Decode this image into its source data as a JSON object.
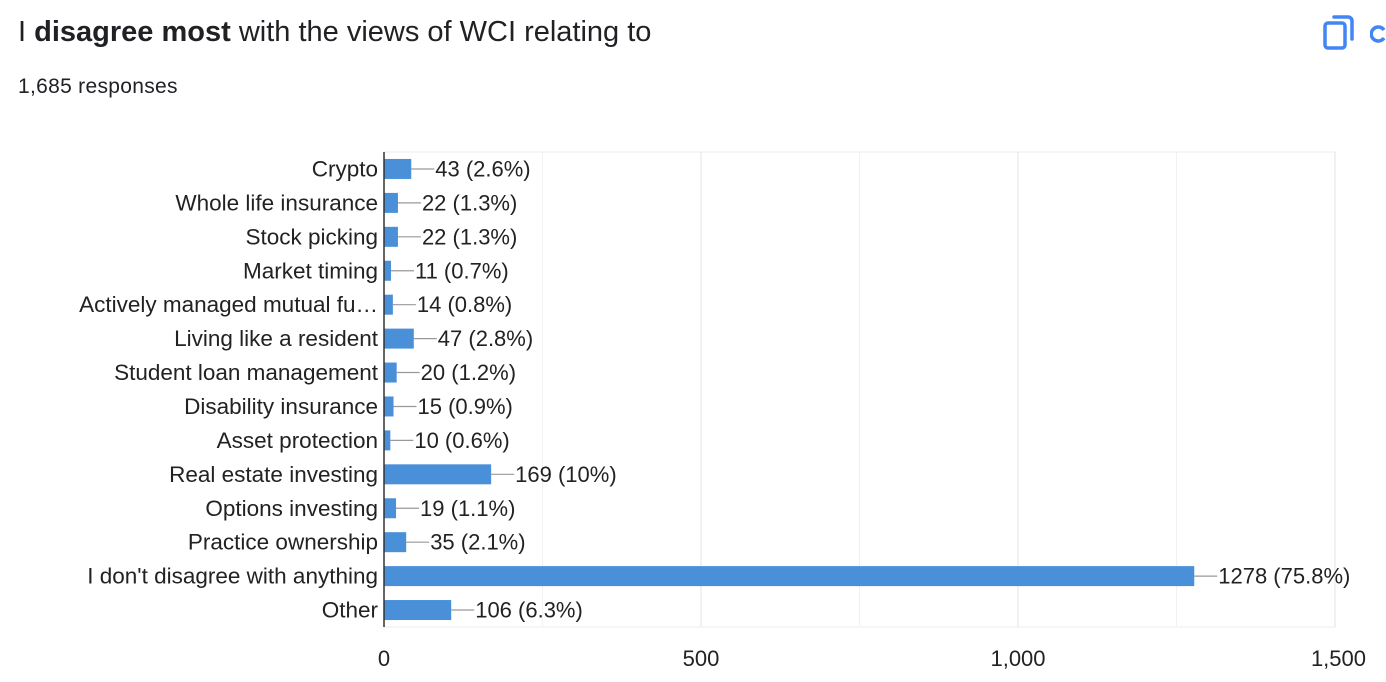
{
  "header": {
    "title_prefix": "I ",
    "title_bold": "disagree most",
    "title_suffix": " with the views of WCI relating to",
    "responses": "1,685 responses",
    "copy_icon": "copy-icon",
    "more_icon": "more-icon",
    "accent_color": "#4285f4"
  },
  "chart_data": {
    "type": "bar",
    "orientation": "horizontal",
    "bar_color": "#4a90d9",
    "categories": [
      "Crypto",
      "Whole life insurance",
      "Stock picking",
      "Market timing",
      "Actively managed mutual fu…",
      "Living like a resident",
      "Student loan management",
      "Disability insurance",
      "Asset protection",
      "Real estate investing",
      "Options investing",
      "Practice ownership",
      "I don't disagree with anything",
      "Other"
    ],
    "values": [
      43,
      22,
      22,
      11,
      14,
      47,
      20,
      15,
      10,
      169,
      19,
      35,
      1278,
      106
    ],
    "value_labels": [
      "43 (2.6%)",
      "22 (1.3%)",
      "22 (1.3%)",
      "11 (0.7%)",
      "14 (0.8%)",
      "47 (2.8%)",
      "20 (1.2%)",
      "15 (0.9%)",
      "10 (0.6%)",
      "169 (10%)",
      "19 (1.1%)",
      "35 (2.1%)",
      "1278 (75.8%)",
      "106 (6.3%)"
    ],
    "xlim": [
      0,
      1500
    ],
    "x_ticks": [
      0,
      500,
      1000,
      1500
    ],
    "x_tick_labels": [
      "0",
      "500",
      "1,000",
      "1,500"
    ],
    "grid": true
  }
}
